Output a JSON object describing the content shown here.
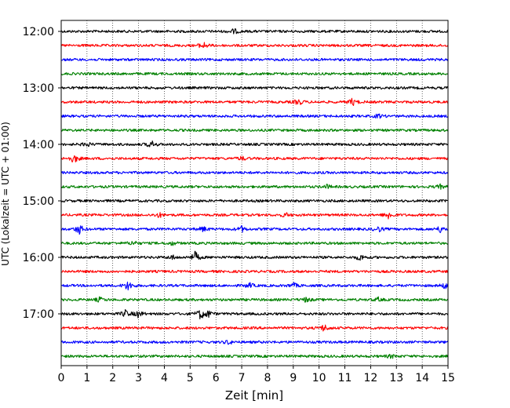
{
  "chart_data": {
    "type": "line",
    "xlabel": "Zeit  [min]",
    "ylabel": "UTC (Lokalzeit = UTC + 01:00)",
    "xlim": [
      0,
      15
    ],
    "x_ticks": [
      "0",
      "1",
      "2",
      "3",
      "4",
      "5",
      "6",
      "7",
      "8",
      "9",
      "10",
      "11",
      "12",
      "13",
      "14",
      "15"
    ],
    "y_ticks": [
      "12:00",
      "13:00",
      "14:00",
      "15:00",
      "16:00",
      "17:00"
    ],
    "grid": "vertical dotted",
    "colors": [
      "#000000",
      "#ff0000",
      "#0000ff",
      "#008000"
    ],
    "traces": [
      {
        "start": "12:00",
        "color": "#000000",
        "events": [
          [
            6.7,
            1.0
          ]
        ]
      },
      {
        "start": "12:15",
        "color": "#ff0000",
        "events": [
          [
            5.5,
            1.4
          ]
        ]
      },
      {
        "start": "12:30",
        "color": "#0000ff",
        "events": []
      },
      {
        "start": "12:45",
        "color": "#008000",
        "events": []
      },
      {
        "start": "13:00",
        "color": "#000000",
        "events": []
      },
      {
        "start": "13:15",
        "color": "#ff0000",
        "events": [
          [
            9.2,
            1.2
          ],
          [
            11.3,
            1.4
          ]
        ]
      },
      {
        "start": "13:30",
        "color": "#0000ff",
        "events": [
          [
            12.3,
            0.8
          ]
        ]
      },
      {
        "start": "13:45",
        "color": "#008000",
        "events": []
      },
      {
        "start": "14:00",
        "color": "#000000",
        "events": [
          [
            1.0,
            0.8
          ],
          [
            3.5,
            1.4
          ]
        ]
      },
      {
        "start": "14:15",
        "color": "#ff0000",
        "events": [
          [
            0.5,
            1.8
          ],
          [
            7.0,
            0.7
          ]
        ]
      },
      {
        "start": "14:30",
        "color": "#0000ff",
        "events": []
      },
      {
        "start": "14:45",
        "color": "#008000",
        "events": [
          [
            10.3,
            0.7
          ],
          [
            14.7,
            0.7
          ]
        ]
      },
      {
        "start": "15:00",
        "color": "#000000",
        "events": []
      },
      {
        "start": "15:15",
        "color": "#ff0000",
        "events": [
          [
            3.8,
            0.9
          ],
          [
            8.7,
            0.8
          ],
          [
            12.7,
            1.6
          ]
        ]
      },
      {
        "start": "15:30",
        "color": "#0000ff",
        "events": [
          [
            0.7,
            2.0
          ],
          [
            5.5,
            1.0
          ],
          [
            7.0,
            1.1
          ],
          [
            12.3,
            1.0
          ],
          [
            14.7,
            1.2
          ]
        ]
      },
      {
        "start": "15:45",
        "color": "#008000",
        "events": [
          [
            2.8,
            0.9
          ],
          [
            4.3,
            0.7
          ]
        ]
      },
      {
        "start": "16:00",
        "color": "#000000",
        "events": [
          [
            5.2,
            2.2
          ],
          [
            11.6,
            1.2
          ],
          [
            4.3,
            0.8
          ]
        ]
      },
      {
        "start": "16:15",
        "color": "#ff0000",
        "events": []
      },
      {
        "start": "16:30",
        "color": "#0000ff",
        "events": [
          [
            2.6,
            2.0
          ],
          [
            7.3,
            1.0
          ],
          [
            9.0,
            1.0
          ],
          [
            14.9,
            1.2
          ]
        ]
      },
      {
        "start": "16:45",
        "color": "#008000",
        "events": [
          [
            1.5,
            0.9
          ],
          [
            9.5,
            0.9
          ],
          [
            12.3,
            0.7
          ]
        ]
      },
      {
        "start": "17:00",
        "color": "#000000",
        "events": [
          [
            2.5,
            1.4
          ],
          [
            3.0,
            1.3
          ],
          [
            5.4,
            2.0
          ],
          [
            5.7,
            1.3
          ]
        ]
      },
      {
        "start": "17:15",
        "color": "#ff0000",
        "events": [
          [
            10.2,
            1.4
          ]
        ]
      },
      {
        "start": "17:30",
        "color": "#0000ff",
        "events": [
          [
            6.5,
            0.8
          ]
        ]
      },
      {
        "start": "17:45",
        "color": "#008000",
        "events": [
          [
            12.8,
            0.7
          ]
        ]
      }
    ]
  }
}
